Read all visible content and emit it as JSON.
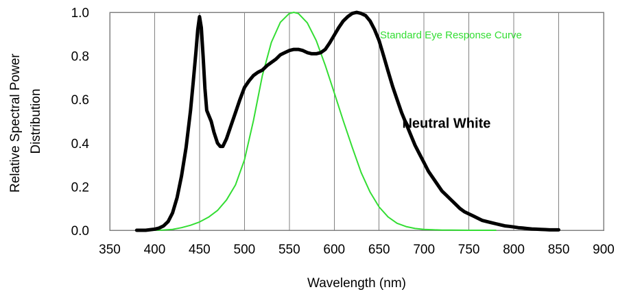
{
  "chart_data": {
    "type": "line",
    "title": "",
    "xlabel": "Wavelength (nm)",
    "ylabel_line1": "Relative Spectral Power",
    "ylabel_line2": "Distribution",
    "xlim": [
      350,
      900
    ],
    "ylim": [
      0,
      1.0
    ],
    "x_ticks": [
      350,
      400,
      450,
      500,
      550,
      600,
      650,
      700,
      750,
      800,
      850,
      900
    ],
    "x_tick_labels": [
      "350",
      "400",
      "450",
      "500",
      "550",
      "600",
      "650",
      "700",
      "750",
      "800",
      "850",
      "900"
    ],
    "y_ticks": [
      0,
      0.2,
      0.4,
      0.6,
      0.8,
      1.0
    ],
    "y_tick_labels": [
      "0.0",
      "0.2",
      "0.4",
      "0.6",
      "0.8",
      "1.0"
    ],
    "grid": "vertical",
    "series": [
      {
        "name": "Neutral White",
        "color": "#000000",
        "x": [
          380,
          390,
          400,
          405,
          410,
          415,
          420,
          425,
          430,
          435,
          440,
          443,
          446,
          448,
          450,
          452,
          454,
          456,
          458,
          460,
          463,
          466,
          470,
          473,
          476,
          480,
          485,
          490,
          495,
          500,
          505,
          510,
          515,
          520,
          525,
          530,
          535,
          540,
          545,
          550,
          555,
          560,
          565,
          570,
          575,
          580,
          585,
          590,
          595,
          600,
          605,
          610,
          615,
          620,
          625,
          630,
          635,
          640,
          645,
          650,
          655,
          660,
          665,
          670,
          675,
          680,
          685,
          690,
          695,
          700,
          705,
          710,
          715,
          720,
          725,
          730,
          735,
          740,
          745,
          750,
          755,
          760,
          765,
          770,
          775,
          780,
          785,
          790,
          795,
          800,
          805,
          810,
          815,
          820,
          825,
          830,
          835,
          840,
          845,
          850
        ],
        "y": [
          0.0,
          0.0,
          0.005,
          0.01,
          0.02,
          0.04,
          0.08,
          0.15,
          0.25,
          0.38,
          0.55,
          0.68,
          0.82,
          0.92,
          0.98,
          0.93,
          0.8,
          0.65,
          0.55,
          0.53,
          0.5,
          0.45,
          0.4,
          0.385,
          0.385,
          0.42,
          0.48,
          0.54,
          0.6,
          0.655,
          0.685,
          0.71,
          0.725,
          0.735,
          0.755,
          0.77,
          0.785,
          0.805,
          0.815,
          0.825,
          0.83,
          0.83,
          0.825,
          0.815,
          0.81,
          0.81,
          0.815,
          0.83,
          0.86,
          0.895,
          0.93,
          0.96,
          0.98,
          0.995,
          1.0,
          0.995,
          0.985,
          0.96,
          0.92,
          0.87,
          0.8,
          0.73,
          0.66,
          0.6,
          0.54,
          0.49,
          0.44,
          0.39,
          0.35,
          0.31,
          0.27,
          0.24,
          0.21,
          0.18,
          0.16,
          0.14,
          0.12,
          0.1,
          0.085,
          0.075,
          0.065,
          0.055,
          0.045,
          0.04,
          0.035,
          0.03,
          0.025,
          0.02,
          0.018,
          0.015,
          0.012,
          0.01,
          0.008,
          0.006,
          0.005,
          0.004,
          0.003,
          0.002,
          0.002,
          0.002
        ]
      },
      {
        "name": "Standard Eye Response Curve",
        "color": "#33dd33",
        "x": [
          400,
          410,
          420,
          430,
          440,
          450,
          460,
          470,
          480,
          490,
          500,
          510,
          520,
          530,
          540,
          550,
          555,
          560,
          570,
          580,
          590,
          600,
          610,
          620,
          630,
          640,
          650,
          660,
          670,
          680,
          690,
          700,
          710,
          720,
          730,
          740,
          750,
          760,
          770,
          780
        ],
        "y": [
          0.0004,
          0.0012,
          0.004,
          0.012,
          0.023,
          0.038,
          0.06,
          0.091,
          0.139,
          0.208,
          0.323,
          0.503,
          0.71,
          0.862,
          0.954,
          0.995,
          1.0,
          0.995,
          0.952,
          0.87,
          0.757,
          0.631,
          0.503,
          0.381,
          0.265,
          0.175,
          0.107,
          0.061,
          0.032,
          0.017,
          0.0082,
          0.0041,
          0.0021,
          0.00105,
          0.00052,
          0.00025,
          0.00012,
          6e-05,
          3e-05,
          1.5e-05
        ]
      }
    ],
    "annotations": [
      {
        "text": "Neutral White",
        "x": 725,
        "y": 0.47,
        "color": "#000000",
        "style": "bold"
      },
      {
        "text": "Standard Eye Response Curve",
        "x": 730,
        "y": 0.88,
        "color": "#33dd33",
        "style": "normal"
      }
    ]
  }
}
